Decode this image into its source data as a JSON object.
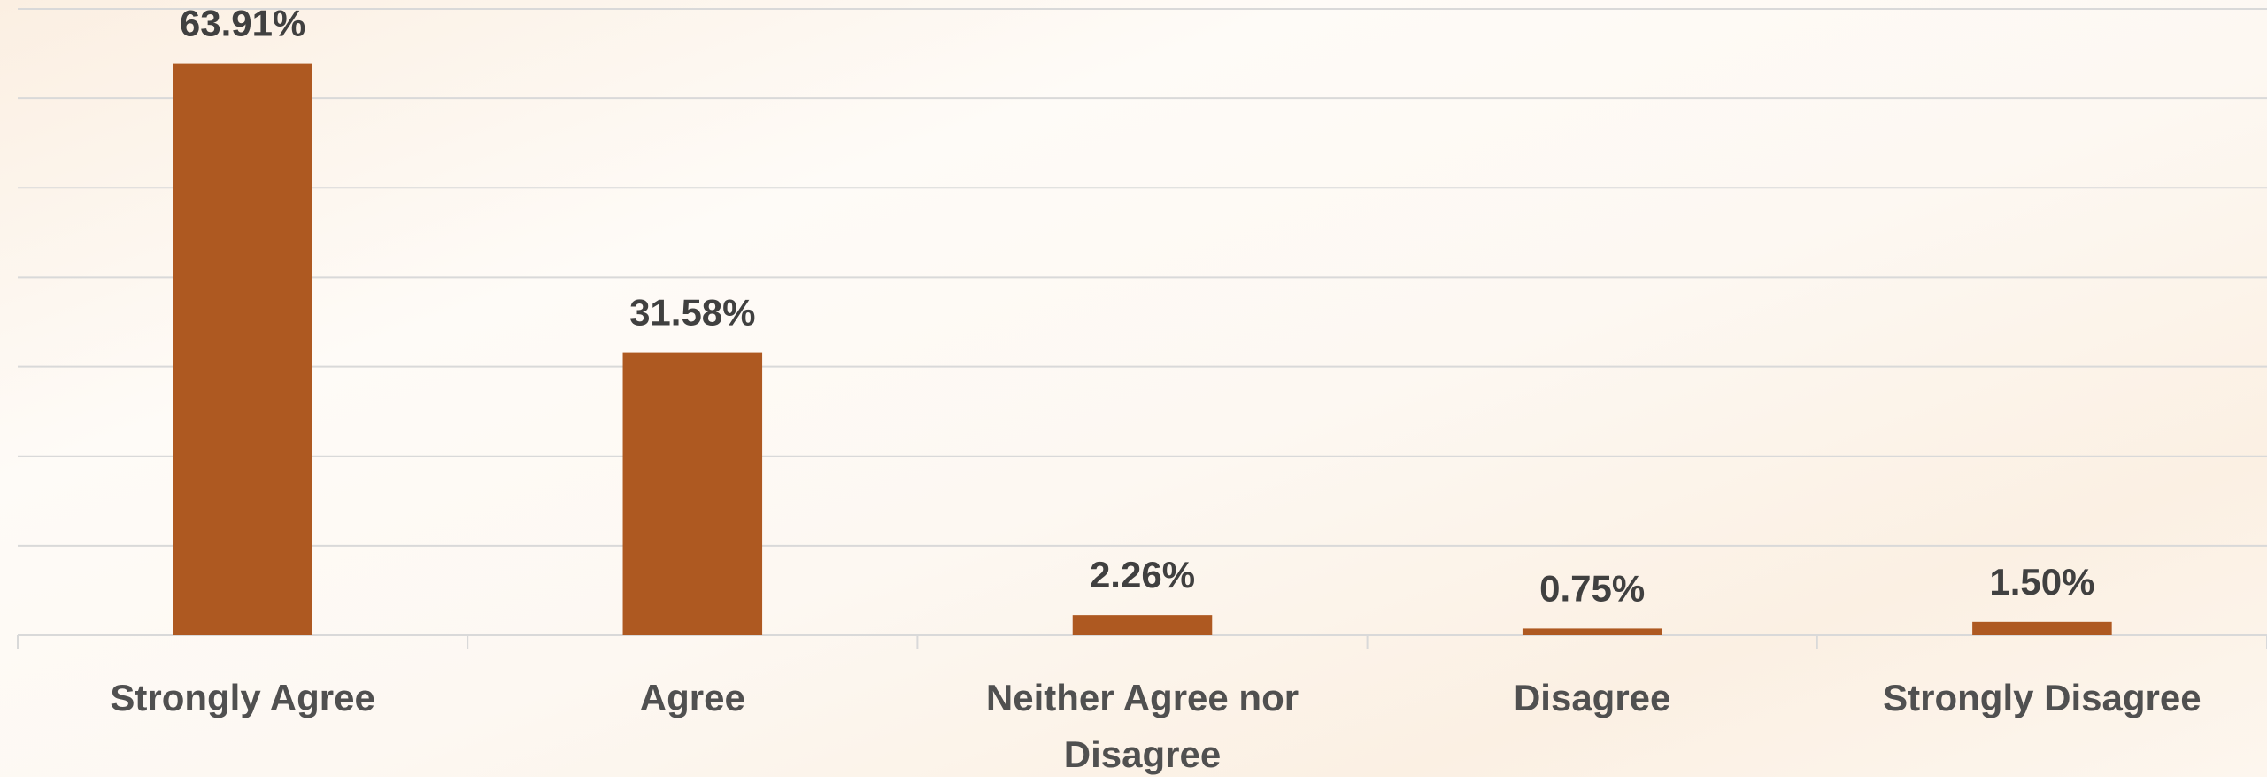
{
  "chart_data": {
    "type": "bar",
    "categories": [
      "Strongly Agree",
      "Agree",
      "Neither Agree nor Disagree",
      "Disagree",
      "Strongly Disagree"
    ],
    "values": [
      63.91,
      31.58,
      2.26,
      0.75,
      1.5
    ],
    "value_labels": [
      "63.91%",
      "31.58%",
      "2.26%",
      "0.75%",
      "1.50%"
    ],
    "color": "#ae5921",
    "ylim": [
      0,
      70
    ],
    "yticks": [
      0,
      10,
      20,
      30,
      40,
      50,
      60,
      70
    ],
    "grid": true
  }
}
